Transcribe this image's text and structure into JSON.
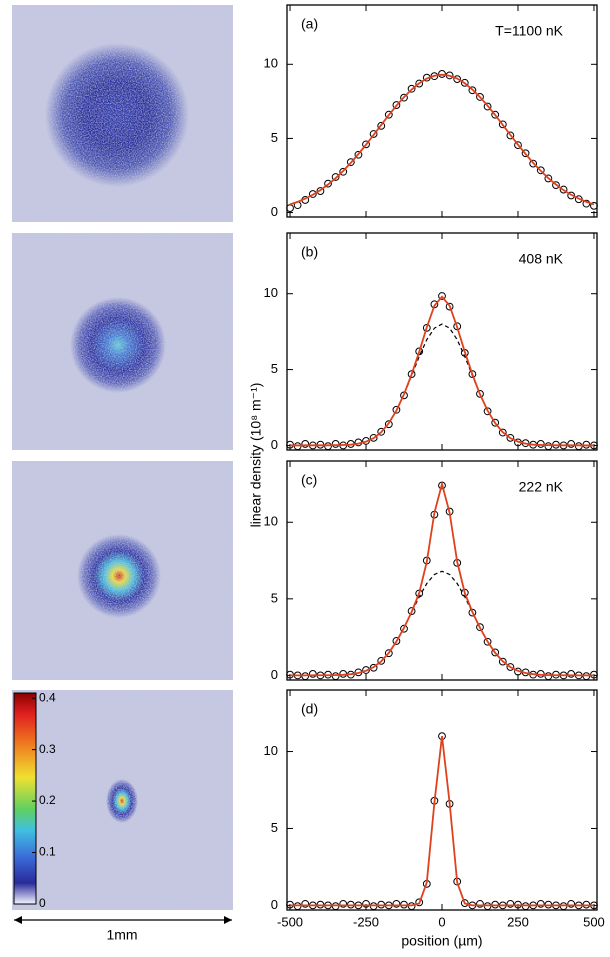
{
  "chart_data": [
    {
      "type": "line",
      "label": "(a)",
      "annotation": "T=1100 nK",
      "x": [
        -500,
        -475,
        -450,
        -425,
        -400,
        -375,
        -350,
        -325,
        -300,
        -275,
        -250,
        -225,
        -200,
        -175,
        -150,
        -125,
        -100,
        -75,
        -50,
        -25,
        0,
        25,
        50,
        75,
        100,
        125,
        150,
        175,
        200,
        225,
        250,
        275,
        300,
        325,
        350,
        375,
        400,
        425,
        450,
        475,
        500
      ],
      "xlim": [
        -510,
        510
      ],
      "xticks": [
        -500,
        -250,
        0,
        250,
        500
      ],
      "ylim": [
        -0.3,
        14
      ],
      "yticks": [
        0,
        5,
        10
      ],
      "series": [
        {
          "style": "markers",
          "color": "#000000",
          "values": [
            0.3,
            0.5,
            0.85,
            1.25,
            1.45,
            1.95,
            2.4,
            2.75,
            3.4,
            3.9,
            4.6,
            5.3,
            5.85,
            6.6,
            7.25,
            7.75,
            8.35,
            8.7,
            9.1,
            9.2,
            9.35,
            9.25,
            9.0,
            8.75,
            8.25,
            7.8,
            7.15,
            6.6,
            5.95,
            5.2,
            4.55,
            4.0,
            3.3,
            2.85,
            2.3,
            1.85,
            1.55,
            1.15,
            0.9,
            0.6,
            0.45
          ]
        },
        {
          "style": "line",
          "color": "#e0401c",
          "values": [
            0.55,
            0.72,
            0.94,
            1.2,
            1.51,
            1.89,
            2.32,
            2.81,
            3.35,
            3.95,
            4.58,
            5.24,
            5.91,
            6.58,
            7.21,
            7.79,
            8.3,
            8.72,
            9.04,
            9.23,
            9.3,
            9.23,
            9.04,
            8.72,
            8.3,
            7.79,
            7.21,
            6.58,
            5.91,
            5.24,
            4.58,
            3.95,
            3.35,
            2.81,
            2.32,
            1.89,
            1.51,
            1.2,
            0.94,
            0.72,
            0.55
          ]
        }
      ]
    },
    {
      "type": "line",
      "label": "(b)",
      "annotation": "408 nK",
      "ylabel": "linear density (10⁸ m⁻¹)",
      "x": [
        -500,
        -475,
        -450,
        -425,
        -400,
        -375,
        -350,
        -325,
        -300,
        -275,
        -250,
        -225,
        -200,
        -175,
        -150,
        -125,
        -100,
        -75,
        -50,
        -25,
        0,
        25,
        50,
        75,
        100,
        125,
        150,
        175,
        200,
        225,
        250,
        275,
        300,
        325,
        350,
        375,
        400,
        425,
        450,
        475,
        500
      ],
      "xlim": [
        -510,
        510
      ],
      "xticks": [
        -500,
        -250,
        0,
        250,
        500
      ],
      "ylim": [
        -0.3,
        14
      ],
      "yticks": [
        0,
        5,
        10
      ],
      "series": [
        {
          "style": "dashed",
          "color": "#000000",
          "values": [
            0,
            0,
            0.01,
            0.01,
            0.01,
            0.01,
            0.02,
            0.03,
            0.05,
            0.12,
            0.25,
            0.48,
            0.87,
            1.47,
            2.3,
            3.37,
            4.6,
            5.86,
            6.97,
            7.73,
            8.0,
            7.73,
            6.97,
            5.86,
            4.6,
            3.37,
            2.3,
            1.47,
            0.87,
            0.48,
            0.25,
            0.12,
            0.05,
            0.03,
            0.02,
            0.01,
            0.01,
            0.01,
            0.01,
            0,
            0
          ]
        },
        {
          "style": "markers",
          "color": "#000000",
          "values": [
            0.05,
            -0.05,
            0.1,
            0.0,
            0.05,
            -0.05,
            0.1,
            0.0,
            0.1,
            0.2,
            0.3,
            0.5,
            0.9,
            1.4,
            2.35,
            3.3,
            4.7,
            6.2,
            7.75,
            9.3,
            9.85,
            9.15,
            7.85,
            6.1,
            4.7,
            3.4,
            2.25,
            1.5,
            0.85,
            0.5,
            0.2,
            0.15,
            0.05,
            0.1,
            -0.05,
            0.05,
            0.0,
            0.1,
            -0.05,
            0.05,
            0.0
          ]
        },
        {
          "style": "line",
          "color": "#e0401c",
          "values": [
            0,
            0,
            0.01,
            0.01,
            0.01,
            0.01,
            0.02,
            0.03,
            0.05,
            0.12,
            0.25,
            0.48,
            0.87,
            1.47,
            2.3,
            3.37,
            4.68,
            6.17,
            7.79,
            9.21,
            9.8,
            9.21,
            7.79,
            6.17,
            4.68,
            3.37,
            2.3,
            1.47,
            0.87,
            0.48,
            0.25,
            0.12,
            0.05,
            0.03,
            0.02,
            0.01,
            0.01,
            0.01,
            0.01,
            0,
            0
          ]
        }
      ]
    },
    {
      "type": "line",
      "label": "(c)",
      "annotation": "222 nK",
      "x": [
        -500,
        -475,
        -450,
        -425,
        -400,
        -375,
        -350,
        -325,
        -300,
        -275,
        -250,
        -225,
        -200,
        -175,
        -150,
        -125,
        -100,
        -75,
        -50,
        -25,
        0,
        25,
        50,
        75,
        100,
        125,
        150,
        175,
        200,
        225,
        250,
        275,
        300,
        325,
        350,
        375,
        400,
        425,
        450,
        475,
        500
      ],
      "xlim": [
        -510,
        510
      ],
      "xticks": [
        -500,
        -250,
        0,
        250,
        500
      ],
      "ylim": [
        -0.3,
        14
      ],
      "yticks": [
        0,
        5,
        10
      ],
      "series": [
        {
          "style": "dashed",
          "color": "#000000",
          "values": [
            0,
            0,
            0,
            0.01,
            0.01,
            0.01,
            0.02,
            0.04,
            0.08,
            0.16,
            0.3,
            0.54,
            0.92,
            1.47,
            2.21,
            3.11,
            4.12,
            5.13,
            6.0,
            6.59,
            6.8,
            6.59,
            6.0,
            5.13,
            4.12,
            3.11,
            2.21,
            1.47,
            0.92,
            0.54,
            0.3,
            0.16,
            0.08,
            0.04,
            0.02,
            0.01,
            0.01,
            0.01,
            0,
            0,
            0
          ]
        },
        {
          "style": "markers",
          "color": "#000000",
          "values": [
            0.05,
            0.0,
            -0.05,
            0.1,
            0.0,
            0.05,
            -0.05,
            0.1,
            0.05,
            0.2,
            0.35,
            0.5,
            0.95,
            1.45,
            2.25,
            3.05,
            4.2,
            5.35,
            7.5,
            10.5,
            12.4,
            10.7,
            7.35,
            5.4,
            4.1,
            3.15,
            2.2,
            1.5,
            0.9,
            0.55,
            0.25,
            0.2,
            0.05,
            0.1,
            -0.05,
            0.05,
            0.0,
            0.1,
            0.0,
            -0.05,
            0.05
          ]
        },
        {
          "style": "line",
          "color": "#e0401c",
          "values": [
            0,
            0,
            0,
            0.01,
            0.01,
            0.01,
            0.02,
            0.04,
            0.08,
            0.16,
            0.3,
            0.54,
            0.92,
            1.47,
            2.21,
            3.11,
            4.14,
            5.38,
            7.42,
            10.62,
            12.5,
            10.62,
            7.42,
            5.38,
            4.14,
            3.11,
            2.21,
            1.47,
            0.92,
            0.54,
            0.3,
            0.16,
            0.08,
            0.04,
            0.02,
            0.01,
            0.01,
            0.01,
            0,
            0,
            0
          ]
        }
      ]
    },
    {
      "type": "line",
      "label": "(d)",
      "xlabel": "position (µm)",
      "show_xtick_labels": true,
      "x": [
        -500,
        -475,
        -450,
        -425,
        -400,
        -375,
        -350,
        -325,
        -300,
        -275,
        -250,
        -225,
        -200,
        -175,
        -150,
        -125,
        -100,
        -75,
        -50,
        -25,
        0,
        25,
        50,
        75,
        100,
        125,
        150,
        175,
        200,
        225,
        250,
        275,
        300,
        325,
        350,
        375,
        400,
        425,
        450,
        475,
        500
      ],
      "xlim": [
        -510,
        510
      ],
      "xticks": [
        -500,
        -250,
        0,
        250,
        500
      ],
      "ylim": [
        -0.3,
        14
      ],
      "yticks": [
        0,
        5,
        10
      ],
      "series": [
        {
          "style": "markers",
          "color": "#000000",
          "values": [
            0.05,
            -0.05,
            0.1,
            0.0,
            0.05,
            0.0,
            -0.05,
            0.1,
            0.05,
            0.0,
            0.1,
            -0.05,
            0.05,
            0.0,
            0.1,
            0.05,
            -0.05,
            0.2,
            1.4,
            6.8,
            11.0,
            6.6,
            1.55,
            0.15,
            0.0,
            0.1,
            -0.05,
            0.05,
            0.0,
            0.1,
            0.05,
            -0.05,
            0.0,
            0.1,
            0.05,
            0.0,
            -0.05,
            0.1,
            0.0,
            0.05,
            0.0
          ]
        },
        {
          "style": "line",
          "color": "#e0401c",
          "values": [
            0,
            0,
            0,
            0,
            0,
            0,
            0,
            0,
            0,
            0,
            0,
            0,
            0,
            0,
            0,
            0,
            0,
            0.12,
            1.49,
            6.67,
            11.0,
            6.67,
            1.49,
            0.12,
            0,
            0,
            0,
            0,
            0,
            0,
            0,
            0,
            0,
            0,
            0,
            0,
            0,
            0,
            0,
            0,
            0
          ]
        }
      ]
    }
  ],
  "images": {
    "colorbar": {
      "lim": [
        0,
        0.41
      ],
      "ticks": [
        0,
        0.1,
        0.2,
        0.3,
        0.4
      ]
    },
    "scale_label": "1mm"
  }
}
